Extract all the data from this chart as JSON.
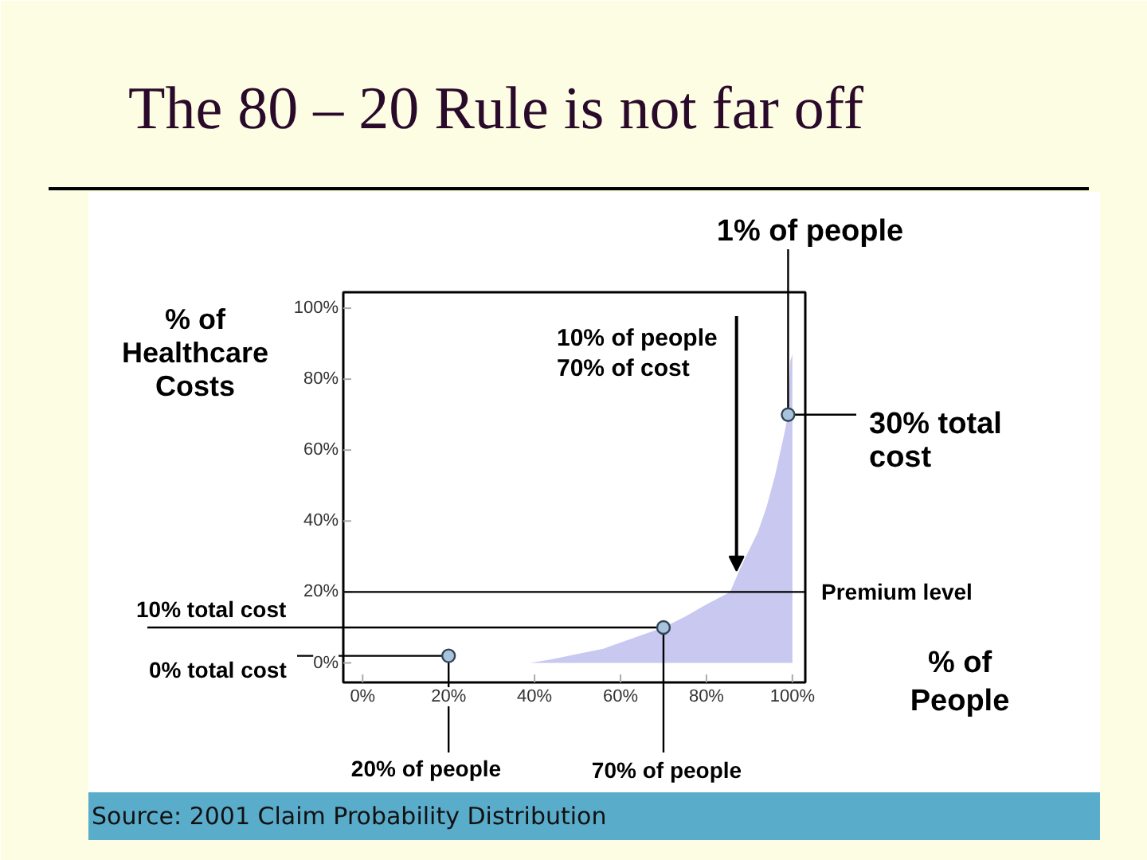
{
  "chart_data": {
    "type": "area",
    "title": "The 80 – 20 Rule is not far off",
    "xlabel": "% of\nPeople",
    "ylabel": "% of\nHealthcare\nCosts",
    "xlim": [
      -4.5,
      103
    ],
    "ylim": [
      -5.5,
      104.5
    ],
    "xticks": [
      {
        "value": 0,
        "label": "0%"
      },
      {
        "value": 20,
        "label": "20%"
      },
      {
        "value": 40,
        "label": "40%"
      },
      {
        "value": 60,
        "label": "60%"
      },
      {
        "value": 80,
        "label": "80%"
      },
      {
        "value": 100,
        "label": "100%"
      }
    ],
    "yticks": [
      {
        "value": 0,
        "label": "0%"
      },
      {
        "value": 20,
        "label": "20%"
      },
      {
        "value": 40,
        "label": "40%"
      },
      {
        "value": 60,
        "label": "60%"
      },
      {
        "value": 80,
        "label": "80%"
      },
      {
        "value": 100,
        "label": "100%"
      }
    ],
    "series": [
      {
        "color": "#c8c8f0",
        "x": [
          0,
          39,
          44,
          50,
          56,
          63,
          70,
          75,
          80,
          85.5,
          88,
          90,
          92,
          94,
          96,
          98,
          99,
          99.5,
          100
        ],
        "values": [
          0,
          0,
          1,
          2.5,
          4,
          7,
          10,
          13,
          16.5,
          20,
          27,
          32,
          37,
          44,
          53,
          64,
          70,
          85,
          87
        ]
      },
      {
        "type": "scatter",
        "marker": "circle",
        "color": "#a8c4dc",
        "x": [
          20,
          70,
          99
        ],
        "values": [
          2,
          10,
          70
        ]
      }
    ],
    "ref_lines": [
      {
        "axis": "y",
        "value": 20,
        "label": "Premium level",
        "color": "#000000"
      }
    ],
    "annotations": [
      {
        "text": "1% of people",
        "x": 99,
        "y": 70
      },
      {
        "text": "30% total\ncost",
        "x": 99,
        "y": 70
      },
      {
        "text": "10% of people\n70% of cost",
        "x": 87,
        "y": 26
      },
      {
        "text": "10% total cost",
        "x": 70,
        "y": 10
      },
      {
        "text": "0% total cost",
        "x": 20,
        "y": 2
      },
      {
        "text": "20% of people",
        "x": 20,
        "y": 2
      },
      {
        "text": "70% of people",
        "x": 70,
        "y": 10
      },
      "Source: 2001 Claim Probability Distribution"
    ]
  }
}
